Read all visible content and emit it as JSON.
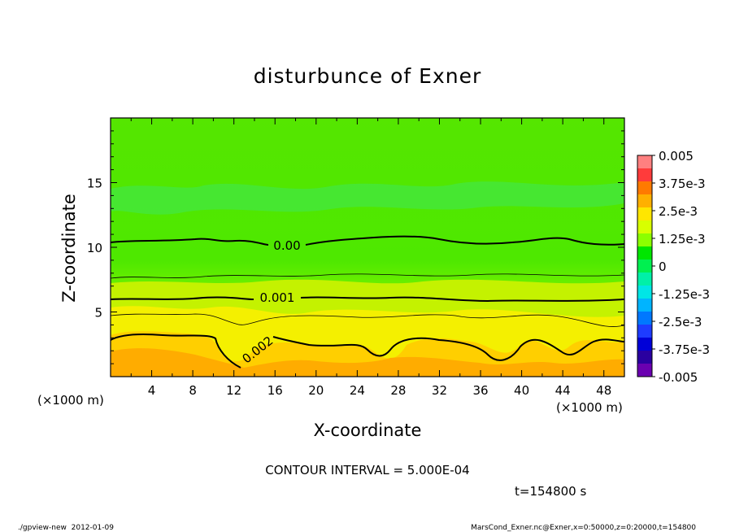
{
  "chart_data": {
    "type": "heatmap",
    "title": "disturbunce of Exner",
    "xlabel": "X-coordinate",
    "ylabel": "Z-coordinate",
    "x_unit_label_left": "(×1000 m)",
    "x_unit_label_right": "(×1000 m)",
    "xlim": [
      0,
      50
    ],
    "ylim": [
      0,
      20
    ],
    "x_ticks": [
      4,
      8,
      12,
      16,
      20,
      24,
      28,
      32,
      36,
      40,
      44,
      48
    ],
    "x_tick_labels": [
      "4",
      "8",
      "12",
      "16",
      "20",
      "24",
      "28",
      "32",
      "36",
      "40",
      "44",
      "48"
    ],
    "y_ticks": [
      5,
      10,
      15
    ],
    "y_tick_labels": [
      "5",
      "10",
      "15"
    ],
    "colorbar": {
      "min": -0.005,
      "max": 0.005,
      "labels": [
        "0.005",
        "3.75e-3",
        "2.5e-3",
        "1.25e-3",
        "0",
        "-1.25e-3",
        "-2.5e-3",
        "-3.75e-3",
        "-0.005"
      ],
      "colors": [
        "#ff8080",
        "#ff3b3b",
        "#ff7a00",
        "#ffb000",
        "#ffe600",
        "#d8ff00",
        "#8cff00",
        "#00e600",
        "#00f050",
        "#00f0a8",
        "#00e6e6",
        "#00b4ff",
        "#0078ff",
        "#1e3cff",
        "#0000d8",
        "#2a00a0",
        "#6a00b0"
      ]
    },
    "contour_labels": [
      {
        "text": "0.00",
        "x": 23.5,
        "z": 10.1
      },
      {
        "text": "0.001",
        "x": 17.5,
        "z": 6.2
      },
      {
        "text": "0.002",
        "x": 15.5,
        "z": 2.4
      }
    ],
    "contour_interval_text": "CONTOUR INTERVAL = 5.000E-04",
    "time_text": "t=154800 s",
    "footer_left": "./gpview-new  2012-01-09",
    "footer_right": "MarsCond_Exner.nc@Exner,x=0:50000,z=0:20000,t=154800"
  }
}
